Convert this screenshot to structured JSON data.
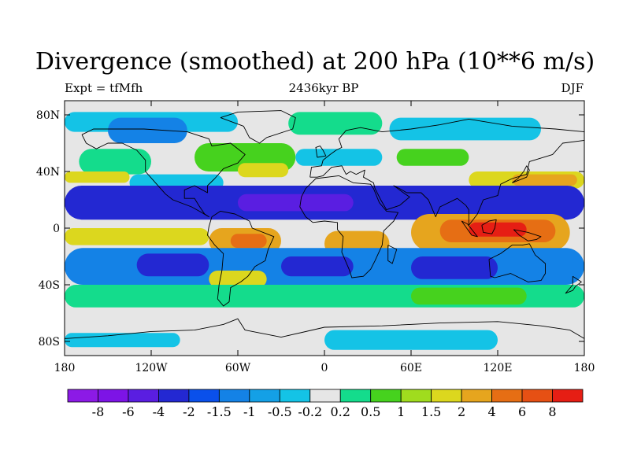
{
  "title": "Divergence (smoothed) at 200 hPa (10**6 m/s)",
  "subtitle_left": "Expt = tfMfh",
  "subtitle_center": "2436kyr BP",
  "subtitle_right": "DJF",
  "axes": {
    "y_ticks": [
      {
        "label": "80N",
        "lat": 80
      },
      {
        "label": "40N",
        "lat": 40
      },
      {
        "label": "0",
        "lat": 0
      },
      {
        "label": "40S",
        "lat": -40
      },
      {
        "label": "80S",
        "lat": -80
      }
    ],
    "x_ticks": [
      {
        "label": "180",
        "lon": -180
      },
      {
        "label": "120W",
        "lon": -120
      },
      {
        "label": "60W",
        "lon": -60
      },
      {
        "label": "0",
        "lon": 0
      },
      {
        "label": "60E",
        "lon": 60
      },
      {
        "label": "120E",
        "lon": 120
      },
      {
        "label": "180",
        "lon": 180
      }
    ],
    "lat_range": [
      -90,
      90
    ],
    "lon_range": [
      -180,
      180
    ]
  },
  "colorbar": {
    "colors": [
      "#8c1ae6",
      "#7d14e6",
      "#5a1ee1",
      "#2328d2",
      "#0a50eb",
      "#1482e6",
      "#14a0e6",
      "#14c3e6",
      "#e6e6e6",
      "#14dc8c",
      "#46d21e",
      "#a0dc1e",
      "#dcd71e",
      "#e6a51e",
      "#e66e14",
      "#e65014",
      "#e61e14"
    ],
    "labels": [
      "-8",
      "-6",
      "-4",
      "-2",
      "-1.5",
      "-1",
      "-0.5",
      "-0.2",
      "0.2",
      "0.5",
      "1",
      "1.5",
      "2",
      "4",
      "6",
      "8"
    ]
  },
  "field_colors": {
    "strong_convergence": "#5a1ee1",
    "convergence": "#2328d2",
    "weak_convergence": "#1482e6",
    "slight_convergence": "#14c3e6",
    "neutral": "#e6e6e6",
    "slight_divergence": "#14dc8c",
    "weak_divergence": "#46d21e",
    "moderate_divergence": "#dcd71e",
    "strong_divergence": "#e6a51e",
    "very_strong_divergence": "#e66e14",
    "extreme_divergence": "#e61e14",
    "coastline": "#000000"
  }
}
